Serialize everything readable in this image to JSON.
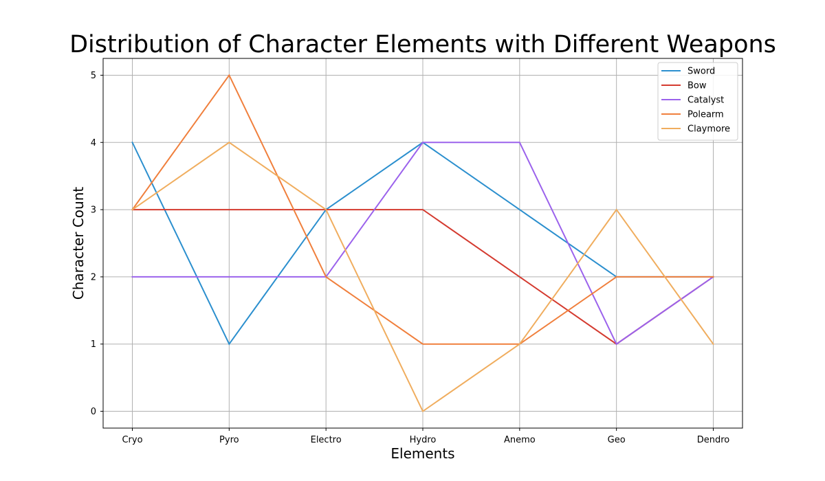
{
  "chart_data": {
    "type": "line",
    "title": "Distribution of Character Elements with Different Weapons",
    "xlabel": "Elements",
    "ylabel": "Character Count",
    "categories": [
      "Cryo",
      "Pyro",
      "Electro",
      "Hydro",
      "Anemo",
      "Geo",
      "Dendro"
    ],
    "ylim": [
      -0.25,
      5.25
    ],
    "yticks": [
      0,
      1,
      2,
      3,
      4,
      5
    ],
    "grid": true,
    "legend_position": "top-right",
    "series": [
      {
        "name": "Sword",
        "color": "#2b8fce",
        "values": [
          4,
          1,
          3,
          4,
          3,
          2,
          2
        ]
      },
      {
        "name": "Bow",
        "color": "#d43a2f",
        "values": [
          3,
          3,
          3,
          3,
          2,
          1,
          2
        ]
      },
      {
        "name": "Catalyst",
        "color": "#9b62ec",
        "values": [
          2,
          2,
          2,
          4,
          4,
          1,
          2
        ]
      },
      {
        "name": "Polearm",
        "color": "#f07f3c",
        "values": [
          3,
          5,
          2,
          1,
          1,
          2,
          2
        ]
      },
      {
        "name": "Claymore",
        "color": "#f0ad5e",
        "values": [
          3,
          4,
          3,
          0,
          1,
          3,
          1
        ]
      }
    ]
  }
}
